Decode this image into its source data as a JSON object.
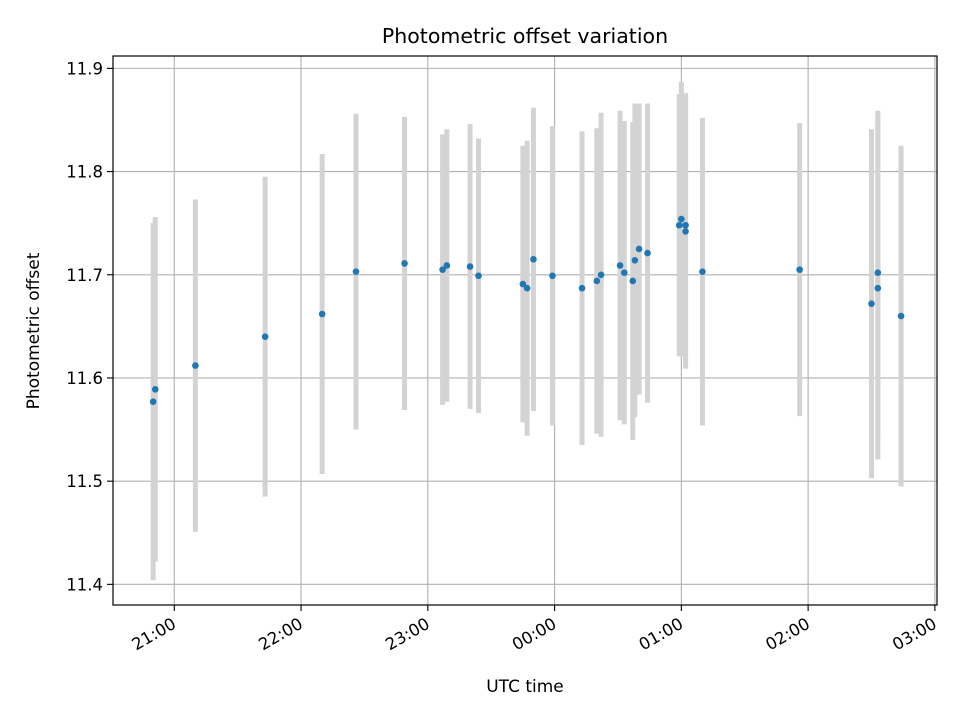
{
  "chart_data": {
    "type": "scatter",
    "title": "Photometric offset variation",
    "xlabel": "UTC time",
    "ylabel": "Photometric offset",
    "x_format": "HH:MM",
    "xlim": [
      "20:31",
      "03:01"
    ],
    "ylim": [
      11.38,
      11.912
    ],
    "x_ticks": [
      "21:00",
      "22:00",
      "23:00",
      "00:00",
      "01:00",
      "02:00",
      "03:00"
    ],
    "y_ticks": [
      11.4,
      11.5,
      11.6,
      11.7,
      11.8,
      11.9
    ],
    "y_tick_labels": [
      "11.4",
      "11.5",
      "11.6",
      "11.7",
      "11.8",
      "11.9"
    ],
    "grid": true,
    "colors": {
      "points": "#1f77b4",
      "error_bars": "#d3d3d3",
      "grid": "#b0b0b0"
    },
    "points": [
      {
        "x": "20:50",
        "y": 11.577,
        "err": 0.173
      },
      {
        "x": "20:51",
        "y": 11.589,
        "err": 0.167
      },
      {
        "x": "21:10",
        "y": 11.612,
        "err": 0.161
      },
      {
        "x": "21:43",
        "y": 11.64,
        "err": 0.155
      },
      {
        "x": "22:10",
        "y": 11.662,
        "err": 0.155
      },
      {
        "x": "22:26",
        "y": 11.703,
        "err": 0.153
      },
      {
        "x": "22:49",
        "y": 11.711,
        "err": 0.142
      },
      {
        "x": "23:07",
        "y": 11.705,
        "err": 0.131
      },
      {
        "x": "23:09",
        "y": 11.709,
        "err": 0.132
      },
      {
        "x": "23:20",
        "y": 11.708,
        "err": 0.138
      },
      {
        "x": "23:24",
        "y": 11.699,
        "err": 0.133
      },
      {
        "x": "23:45",
        "y": 11.691,
        "err": 0.134
      },
      {
        "x": "23:47",
        "y": 11.687,
        "err": 0.143
      },
      {
        "x": "23:50",
        "y": 11.715,
        "err": 0.147
      },
      {
        "x": "23:59",
        "y": 11.699,
        "err": 0.145
      },
      {
        "x": "00:13",
        "y": 11.687,
        "err": 0.152
      },
      {
        "x": "00:20",
        "y": 11.694,
        "err": 0.148
      },
      {
        "x": "00:22",
        "y": 11.7,
        "err": 0.157
      },
      {
        "x": "00:31",
        "y": 11.709,
        "err": 0.15
      },
      {
        "x": "00:33",
        "y": 11.702,
        "err": 0.147
      },
      {
        "x": "00:37",
        "y": 11.694,
        "err": 0.154
      },
      {
        "x": "00:38",
        "y": 11.714,
        "err": 0.152
      },
      {
        "x": "00:40",
        "y": 11.725,
        "err": 0.141
      },
      {
        "x": "00:44",
        "y": 11.721,
        "err": 0.145
      },
      {
        "x": "00:59",
        "y": 11.748,
        "err": 0.127
      },
      {
        "x": "01:00",
        "y": 11.754,
        "err": 0.133
      },
      {
        "x": "01:02",
        "y": 11.742,
        "err": 0.133
      },
      {
        "x": "01:02",
        "y": 11.748,
        "err": 0.128
      },
      {
        "x": "01:10",
        "y": 11.703,
        "err": 0.149
      },
      {
        "x": "01:56",
        "y": 11.705,
        "err": 0.142
      },
      {
        "x": "02:30",
        "y": 11.672,
        "err": 0.169
      },
      {
        "x": "02:33",
        "y": 11.687,
        "err": 0.166
      },
      {
        "x": "02:33",
        "y": 11.702,
        "err": 0.157
      },
      {
        "x": "02:44",
        "y": 11.66,
        "err": 0.165
      }
    ]
  }
}
